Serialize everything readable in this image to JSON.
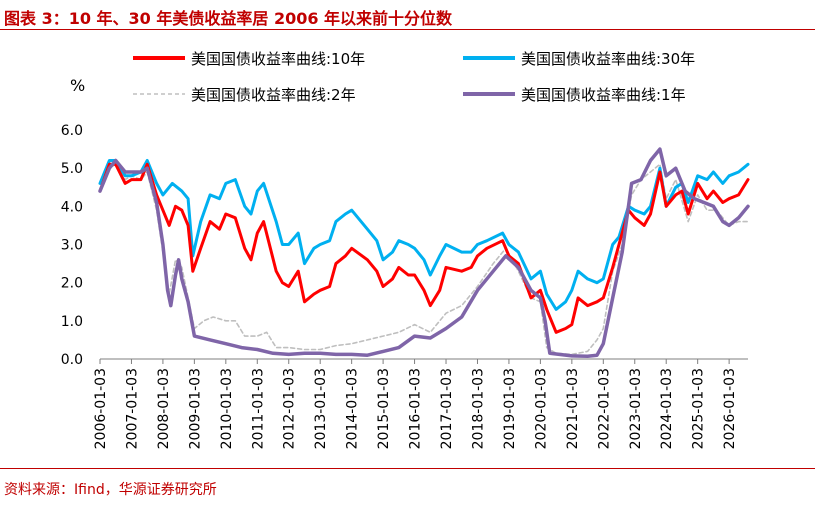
{
  "header": {
    "title": "图表 3：10 年、30 年美债收益率居 2006 年以来前十分位数"
  },
  "footer": {
    "source": "资料来源：Ifind，华源证券研究所"
  },
  "colors": {
    "accent": "#c00000",
    "series_10y": "#ff0000",
    "series_30y": "#00b0f0",
    "series_2y": "#bfbfbf",
    "series_1y": "#7f65a8"
  },
  "chart_data": {
    "type": "line",
    "unit_label": "%",
    "ylim": [
      0,
      6
    ],
    "yticks": [
      "0.0",
      "1.0",
      "2.0",
      "3.0",
      "4.0",
      "5.0",
      "6.0"
    ],
    "xticks": [
      "2006-01-03",
      "2007-01-03",
      "2008-01-03",
      "2009-01-03",
      "2010-01-03",
      "2011-01-03",
      "2012-01-03",
      "2013-01-03",
      "2014-01-03",
      "2015-01-03",
      "2016-01-03",
      "2017-01-03",
      "2018-01-03",
      "2019-01-03",
      "2020-01-03",
      "2021-01-03",
      "2022-01-03",
      "2023-01-03",
      "2024-01-03",
      "2025-01-03",
      "2026-01-03"
    ],
    "xlim": [
      2006.0,
      2026.6
    ],
    "legend_position": "top",
    "series": [
      {
        "name": "美国国债收益率曲线:10年",
        "style": "solid-thick",
        "x": [
          2006.0,
          2006.3,
          2006.5,
          2006.8,
          2007.0,
          2007.3,
          2007.5,
          2007.8,
          2008.0,
          2008.2,
          2008.4,
          2008.6,
          2008.8,
          2008.95,
          2009.2,
          2009.5,
          2009.8,
          2010.0,
          2010.3,
          2010.6,
          2010.8,
          2011.0,
          2011.2,
          2011.6,
          2011.8,
          2012.0,
          2012.3,
          2012.5,
          2012.8,
          2013.0,
          2013.3,
          2013.5,
          2013.8,
          2014.0,
          2014.5,
          2014.8,
          2015.0,
          2015.3,
          2015.5,
          2015.8,
          2016.0,
          2016.3,
          2016.5,
          2016.8,
          2017.0,
          2017.5,
          2017.8,
          2018.0,
          2018.3,
          2018.8,
          2019.0,
          2019.3,
          2019.7,
          2020.0,
          2020.2,
          2020.5,
          2020.8,
          2021.0,
          2021.2,
          2021.5,
          2021.8,
          2022.0,
          2022.3,
          2022.5,
          2022.8,
          2023.0,
          2023.3,
          2023.5,
          2023.8,
          2024.0,
          2024.3,
          2024.5,
          2024.7,
          2025.0,
          2025.3,
          2025.5,
          2025.8,
          2026.0,
          2026.3,
          2026.6
        ],
        "values": [
          4.4,
          5.1,
          5.1,
          4.6,
          4.7,
          4.7,
          5.1,
          4.3,
          3.9,
          3.5,
          4.0,
          3.9,
          3.5,
          2.3,
          2.9,
          3.6,
          3.4,
          3.8,
          3.7,
          2.9,
          2.6,
          3.3,
          3.6,
          2.3,
          2.0,
          1.9,
          2.3,
          1.5,
          1.7,
          1.8,
          1.9,
          2.5,
          2.7,
          2.9,
          2.6,
          2.3,
          1.9,
          2.1,
          2.4,
          2.2,
          2.2,
          1.8,
          1.4,
          1.8,
          2.4,
          2.3,
          2.4,
          2.7,
          2.9,
          3.1,
          2.7,
          2.5,
          1.6,
          1.8,
          1.3,
          0.7,
          0.8,
          0.9,
          1.6,
          1.4,
          1.5,
          1.6,
          2.4,
          3.0,
          3.9,
          3.7,
          3.5,
          3.8,
          4.9,
          4.0,
          4.3,
          4.4,
          3.8,
          4.6,
          4.2,
          4.4,
          4.1,
          4.2,
          4.3,
          4.7
        ]
      },
      {
        "name": "美国国债收益率曲线:30年",
        "style": "solid-thick",
        "x": [
          2006.0,
          2006.3,
          2006.5,
          2006.8,
          2007.0,
          2007.3,
          2007.5,
          2007.8,
          2008.0,
          2008.3,
          2008.6,
          2008.8,
          2008.95,
          2009.2,
          2009.5,
          2009.8,
          2010.0,
          2010.3,
          2010.6,
          2010.8,
          2011.0,
          2011.2,
          2011.6,
          2011.8,
          2012.0,
          2012.3,
          2012.5,
          2012.8,
          2013.0,
          2013.3,
          2013.5,
          2013.8,
          2014.0,
          2014.5,
          2014.8,
          2015.0,
          2015.3,
          2015.5,
          2015.8,
          2016.0,
          2016.3,
          2016.5,
          2016.8,
          2017.0,
          2017.5,
          2017.8,
          2018.0,
          2018.3,
          2018.8,
          2019.0,
          2019.3,
          2019.7,
          2020.0,
          2020.2,
          2020.5,
          2020.8,
          2021.0,
          2021.2,
          2021.5,
          2021.8,
          2022.0,
          2022.3,
          2022.5,
          2022.8,
          2023.0,
          2023.3,
          2023.5,
          2023.8,
          2024.0,
          2024.3,
          2024.5,
          2024.7,
          2025.0,
          2025.3,
          2025.5,
          2025.8,
          2026.0,
          2026.3,
          2026.6
        ],
        "values": [
          4.6,
          5.2,
          5.2,
          4.8,
          4.8,
          4.9,
          5.2,
          4.6,
          4.3,
          4.6,
          4.4,
          4.2,
          2.7,
          3.6,
          4.3,
          4.2,
          4.6,
          4.7,
          4.0,
          3.8,
          4.4,
          4.6,
          3.6,
          3.0,
          3.0,
          3.3,
          2.5,
          2.9,
          3.0,
          3.1,
          3.6,
          3.8,
          3.9,
          3.4,
          3.1,
          2.6,
          2.8,
          3.1,
          3.0,
          2.9,
          2.6,
          2.2,
          2.7,
          3.0,
          2.8,
          2.8,
          3.0,
          3.1,
          3.3,
          3.0,
          2.8,
          2.1,
          2.3,
          1.7,
          1.3,
          1.5,
          1.8,
          2.3,
          2.1,
          2.0,
          2.1,
          3.0,
          3.2,
          4.0,
          3.9,
          3.8,
          4.0,
          5.0,
          4.0,
          4.5,
          4.6,
          4.1,
          4.8,
          4.7,
          4.9,
          4.6,
          4.8,
          4.9,
          5.1
        ]
      },
      {
        "name": "美国国债收益率曲线:2年",
        "style": "dashed",
        "x": [
          2006.0,
          2006.3,
          2006.5,
          2006.8,
          2007.0,
          2007.3,
          2007.5,
          2007.8,
          2008.0,
          2008.2,
          2008.4,
          2008.6,
          2008.8,
          2009.0,
          2009.3,
          2009.6,
          2010.0,
          2010.3,
          2010.6,
          2011.0,
          2011.3,
          2011.6,
          2012.0,
          2012.5,
          2013.0,
          2013.5,
          2014.0,
          2014.5,
          2015.0,
          2015.5,
          2016.0,
          2016.5,
          2017.0,
          2017.5,
          2018.0,
          2018.5,
          2018.9,
          2019.3,
          2019.7,
          2020.0,
          2020.2,
          2020.5,
          2021.0,
          2021.5,
          2021.8,
          2022.0,
          2022.3,
          2022.6,
          2022.9,
          2023.2,
          2023.5,
          2023.8,
          2024.0,
          2024.3,
          2024.7,
          2025.0,
          2025.3,
          2025.6,
          2026.0,
          2026.3,
          2026.6
        ],
        "values": [
          4.4,
          5.0,
          5.1,
          4.7,
          4.8,
          4.7,
          4.9,
          3.9,
          2.8,
          1.7,
          2.6,
          2.4,
          1.6,
          0.8,
          1.0,
          1.1,
          1.0,
          1.0,
          0.6,
          0.6,
          0.7,
          0.3,
          0.3,
          0.25,
          0.25,
          0.35,
          0.4,
          0.5,
          0.6,
          0.7,
          0.9,
          0.7,
          1.2,
          1.4,
          1.9,
          2.5,
          2.9,
          2.3,
          1.6,
          1.5,
          0.3,
          0.15,
          0.12,
          0.2,
          0.5,
          0.8,
          2.3,
          3.0,
          4.3,
          4.7,
          4.9,
          5.1,
          4.2,
          4.7,
          3.6,
          4.3,
          3.9,
          3.9,
          3.5,
          3.6,
          3.6
        ]
      },
      {
        "name": "美国国债收益率曲线:1年",
        "style": "solid-thick",
        "x": [
          2006.0,
          2006.3,
          2006.5,
          2006.8,
          2007.0,
          2007.3,
          2007.5,
          2007.8,
          2008.0,
          2008.15,
          2008.25,
          2008.4,
          2008.5,
          2008.6,
          2008.8,
          2009.0,
          2009.5,
          2010.0,
          2010.5,
          2011.0,
          2011.5,
          2012.0,
          2012.5,
          2013.0,
          2013.5,
          2014.0,
          2014.5,
          2015.0,
          2015.5,
          2016.0,
          2016.5,
          2017.0,
          2017.5,
          2018.0,
          2018.5,
          2018.9,
          2019.3,
          2019.7,
          2020.0,
          2020.15,
          2020.3,
          2020.6,
          2021.0,
          2021.5,
          2021.8,
          2022.0,
          2022.3,
          2022.6,
          2022.9,
          2023.2,
          2023.5,
          2023.8,
          2024.0,
          2024.3,
          2024.6,
          2024.9,
          2025.2,
          2025.5,
          2025.8,
          2026.0,
          2026.3,
          2026.6
        ],
        "values": [
          4.4,
          5.0,
          5.2,
          4.9,
          4.9,
          4.9,
          5.0,
          4.1,
          3.0,
          1.8,
          1.4,
          2.2,
          2.6,
          2.1,
          1.5,
          0.6,
          0.5,
          0.4,
          0.3,
          0.25,
          0.15,
          0.12,
          0.15,
          0.15,
          0.12,
          0.12,
          0.1,
          0.2,
          0.3,
          0.6,
          0.55,
          0.8,
          1.1,
          1.8,
          2.3,
          2.7,
          2.4,
          1.8,
          1.6,
          1.0,
          0.15,
          0.12,
          0.08,
          0.07,
          0.1,
          0.4,
          1.6,
          2.8,
          4.6,
          4.7,
          5.2,
          5.5,
          4.8,
          5.0,
          4.4,
          4.2,
          4.1,
          4.0,
          3.6,
          3.5,
          3.7,
          4.0
        ]
      }
    ]
  }
}
